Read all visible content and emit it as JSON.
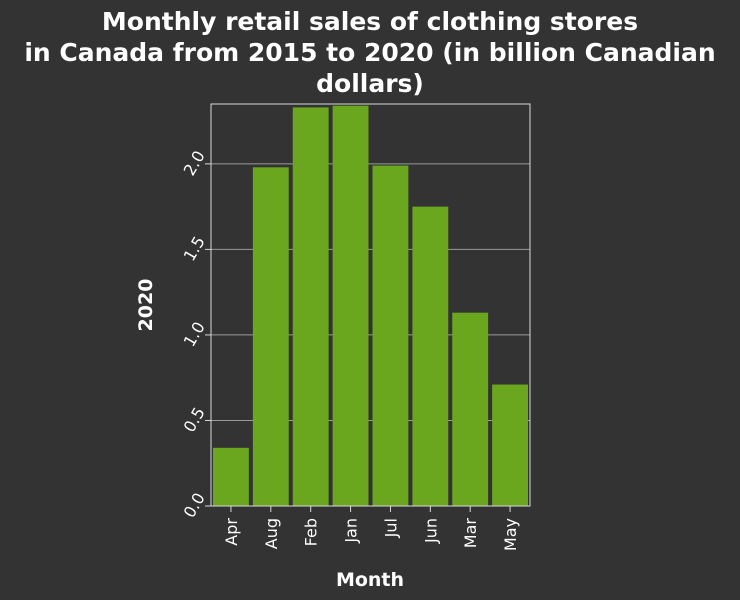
{
  "colors": {
    "background": "#333333",
    "bar": "#6aa61e",
    "grid": "#9a9a9a",
    "text": "#ffffff",
    "frame": "#d9d9d9"
  },
  "chart_data": {
    "type": "bar",
    "title_lines": [
      "Monthly retail sales of clothing stores",
      "in Canada from 2015 to 2020 (in billion Canadian",
      "dollars)"
    ],
    "xlabel": "Month",
    "ylabel": "2020",
    "categories": [
      "Apr",
      "Aug",
      "Feb",
      "Jan",
      "Jul",
      "Jun",
      "Mar",
      "May"
    ],
    "values": [
      0.34,
      1.98,
      2.33,
      2.34,
      1.99,
      1.75,
      1.13,
      0.71
    ],
    "ylim": [
      0,
      2.35
    ],
    "yticks": [
      "0.0",
      "0.5",
      "1.0",
      "1.5",
      "2.0"
    ],
    "ytick_values": [
      0,
      0.5,
      1.0,
      1.5,
      2.0
    ],
    "grid": true
  }
}
